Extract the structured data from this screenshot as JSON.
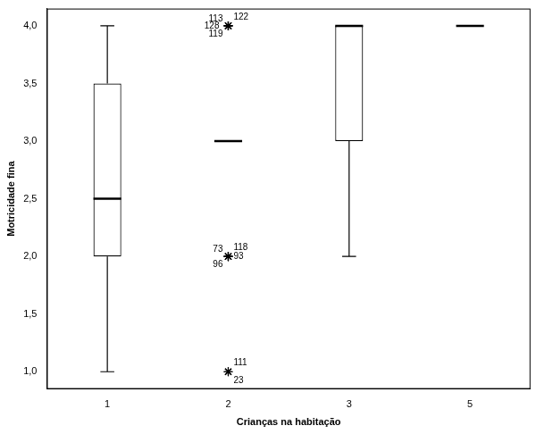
{
  "chart_data": {
    "type": "boxplot",
    "x_label": "Crianças na habitação",
    "y_label": "Motricidade fina",
    "categories": [
      "1",
      "2",
      "3",
      "5"
    ],
    "boxes": [
      {
        "min": 1,
        "q1": 2,
        "median": 2.5,
        "q3": 3.5,
        "max": 4
      },
      {
        "min": 3,
        "q1": 3,
        "median": 3,
        "q3": 3,
        "max": 3
      },
      {
        "min": 2,
        "q1": 3,
        "median": 4,
        "q3": 4,
        "max": 4
      },
      {
        "min": 4,
        "q1": 4,
        "median": 4,
        "q3": 4,
        "max": 4
      }
    ],
    "outliers": [
      {
        "category": "2",
        "value": 4,
        "label": "113"
      },
      {
        "category": "2",
        "value": 4,
        "label": "122"
      },
      {
        "category": "2",
        "value": 4,
        "label": "128"
      },
      {
        "category": "2",
        "value": 4,
        "label": "119"
      },
      {
        "category": "2",
        "value": 2,
        "label": "73"
      },
      {
        "category": "2",
        "value": 2,
        "label": "118"
      },
      {
        "category": "2",
        "value": 2,
        "label": "93"
      },
      {
        "category": "2",
        "value": 2,
        "label": "96"
      },
      {
        "category": "2",
        "value": 1,
        "label": "111"
      },
      {
        "category": "2",
        "value": 1,
        "label": "23"
      }
    ],
    "marker": "star",
    "color": "#000000",
    "ylim": [
      0.85,
      4.15
    ],
    "yticks": [
      {
        "value": 1,
        "label": "1,0"
      },
      {
        "value": 1.5,
        "label": "1,5"
      },
      {
        "value": 2,
        "label": "2,0"
      },
      {
        "value": 2.5,
        "label": "2,5"
      },
      {
        "value": 3,
        "label": "3,0"
      },
      {
        "value": 3.5,
        "label": "3,5"
      },
      {
        "value": 4,
        "label": "4,0"
      }
    ],
    "grid": false
  }
}
